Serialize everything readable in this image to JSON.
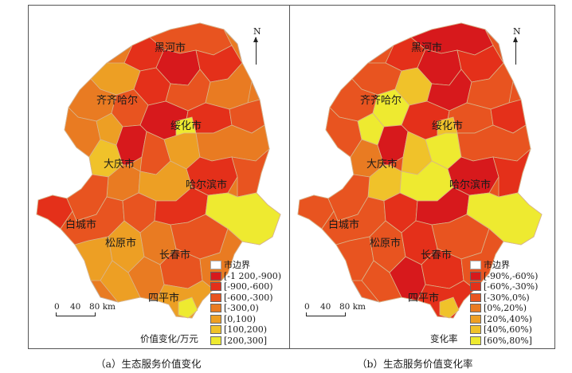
{
  "panel_a": {
    "cities": [
      "黑河市",
      "齐齐哈尔",
      "绥化市",
      "大庆市",
      "哈尔滨市",
      "白城市",
      "松原市",
      "长春市",
      "四平市"
    ],
    "north": "N",
    "scale": {
      "zero": "0",
      "mid": "40",
      "end": "80 km"
    },
    "legend": {
      "boundary": "市边界",
      "classes": [
        "[-1 200,-900)",
        "[-900,-600)",
        "[-600,-300)",
        "[-300,0)",
        "[0,100)",
        "[100,200)",
        "[200,300]"
      ],
      "colors": [
        "#d7191c",
        "#e4301a",
        "#e85420",
        "#e97b22",
        "#ed9f24",
        "#f0c22a",
        "#eeea30"
      ],
      "title": "价值变化/万元"
    },
    "caption": "（a）生态服务价值变化"
  },
  "panel_b": {
    "cities": [
      "黑河市",
      "齐齐哈尔",
      "绥化市",
      "大庆市",
      "哈尔滨市",
      "白城市",
      "松原市",
      "长春市",
      "四平市"
    ],
    "north": "N",
    "scale": {
      "zero": "0",
      "mid": "40",
      "end": "80 km"
    },
    "legend": {
      "boundary": "市边界",
      "classes": [
        "[-90%,-60%)",
        "[-60%,-30%)",
        "[-30%,0%)",
        "[0%,20%)",
        "[20%,40%)",
        "[40%,60%)",
        "[60%,80%]"
      ],
      "colors": [
        "#d7191c",
        "#e4301a",
        "#e85420",
        "#e97b22",
        "#ed9f24",
        "#f0c22a",
        "#eeea30"
      ],
      "title": "变化率"
    },
    "caption": "（b）生态服务价值变化率"
  }
}
